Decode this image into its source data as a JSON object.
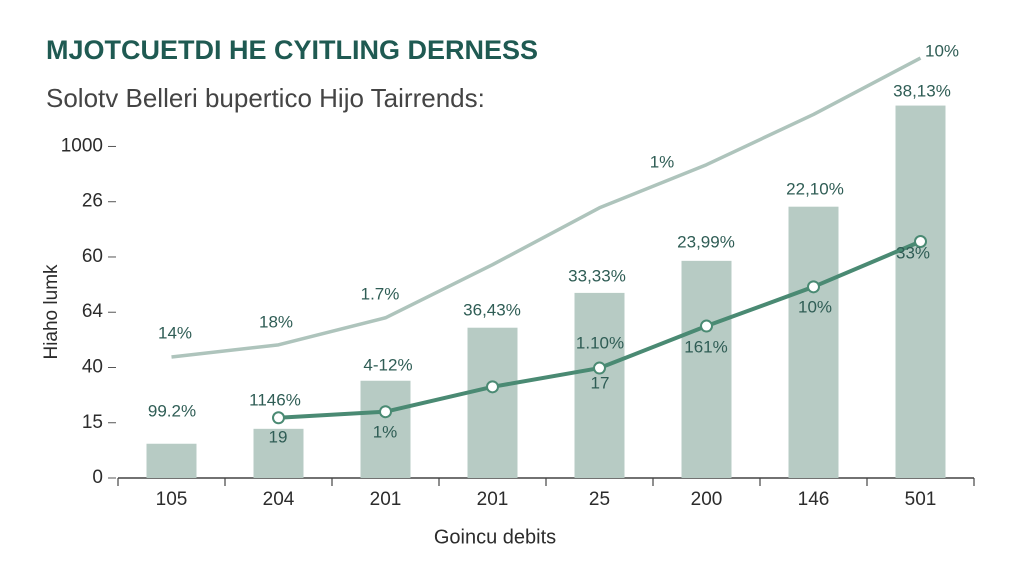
{
  "chart_data": {
    "type": "bar",
    "title": "MJOTCUETDI HE CYITLING DERNESS",
    "subtitle": "Solotv Belleri bupertico Hijo Tairrends:",
    "x_label": "Goincu debits",
    "y_label": "Hiaho lumk",
    "categories": [
      "105",
      "204",
      "201",
      "201",
      "25",
      "200",
      "146",
      "501"
    ],
    "ylim": [
      0,
      7.8
    ],
    "yticks": [
      0,
      {
        "value": 1,
        "label": "15"
      },
      {
        "value": 2,
        "label": "40"
      },
      {
        "value": 3,
        "label": "64"
      },
      {
        "value": 4,
        "label": "60"
      },
      {
        "value": 5,
        "label": "26"
      },
      {
        "value": 6,
        "label": "1000"
      }
    ],
    "series": [
      {
        "type": "bar",
        "color": "#b7cbc4",
        "values": [
          0.62,
          0.89,
          1.76,
          2.72,
          3.35,
          3.93,
          4.91,
          6.74
        ]
      },
      {
        "type": "line",
        "color": "#aec4bc",
        "values": [
          2.19,
          2.41,
          2.9,
          3.86,
          4.89,
          5.67,
          6.58,
          7.6
        ]
      },
      {
        "type": "line",
        "color": "#4a8a73",
        "markers": true,
        "values": [
          null,
          1.09,
          1.2,
          1.65,
          1.99,
          2.75,
          3.46,
          4.28
        ]
      }
    ],
    "annotations": [
      "10%",
      "38,13%",
      "1%",
      "22,10%",
      "23,99%",
      "33,33%",
      "33%",
      "1.7%",
      "36,43%",
      "14%",
      "18%",
      "10%",
      "1.10%",
      "161%",
      "4-12%",
      "1146%",
      "99.2%",
      "19",
      "1%",
      "17"
    ]
  }
}
